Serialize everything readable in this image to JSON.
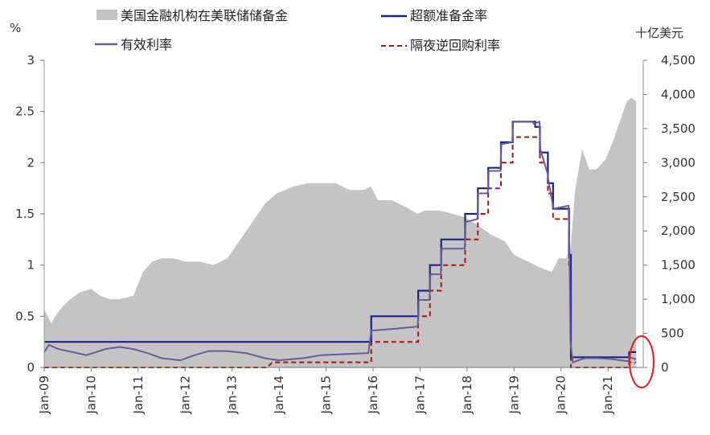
{
  "chart_data": {
    "type": "area+line",
    "left_axis": {
      "unit": "%",
      "min": 0,
      "max": 3,
      "ticks": [
        0,
        0.5,
        1,
        1.5,
        2,
        2.5,
        3
      ],
      "tick_labels": [
        "0",
        "0.5",
        "1",
        "1.5",
        "2",
        "2.5",
        "3"
      ]
    },
    "right_axis": {
      "unit": "十亿美元",
      "min": 0,
      "max": 4500,
      "ticks": [
        0,
        500,
        1000,
        1500,
        2000,
        2500,
        3000,
        3500,
        4000,
        4500
      ],
      "tick_labels": [
        "0",
        "500",
        "1,000",
        "1,500",
        "2,000",
        "2,500",
        "3,000",
        "3,500",
        "4,000",
        "4,500"
      ]
    },
    "x_axis": {
      "min": 2009.0,
      "max": 2021.75,
      "tick_labels": [
        "Jan-09",
        "Jan-10",
        "Jan-11",
        "Jan-12",
        "Jan-13",
        "Jan-14",
        "Jan-15",
        "Jan-16",
        "Jan-17",
        "Jan-18",
        "Jan-19",
        "Jan-20",
        "Jan-21"
      ],
      "tick_values": [
        2009,
        2010,
        2011,
        2012,
        2013,
        2014,
        2015,
        2016,
        2017,
        2018,
        2019,
        2020,
        2021
      ]
    },
    "legend": [
      {
        "key": "reserves",
        "label": "美国金融机构在美联储储备金",
        "color": "#c4c4c4",
        "style": "area"
      },
      {
        "key": "effr",
        "label": "有效利率",
        "color": "#6a5a9a",
        "style": "line"
      },
      {
        "key": "ioer",
        "label": "超额准备金率",
        "color": "#1a237e",
        "style": "line"
      },
      {
        "key": "onrrp",
        "label": "隔夜逆回购利率",
        "color": "#a01818",
        "style": "dashed"
      }
    ],
    "series": {
      "reserves": [
        [
          2009.0,
          850
        ],
        [
          2009.15,
          650
        ],
        [
          2009.3,
          820
        ],
        [
          2009.5,
          970
        ],
        [
          2009.75,
          1100
        ],
        [
          2010.0,
          1150
        ],
        [
          2010.2,
          1050
        ],
        [
          2010.4,
          1000
        ],
        [
          2010.6,
          1000
        ],
        [
          2010.9,
          1050
        ],
        [
          2011.1,
          1400
        ],
        [
          2011.3,
          1550
        ],
        [
          2011.5,
          1600
        ],
        [
          2011.75,
          1600
        ],
        [
          2012.0,
          1550
        ],
        [
          2012.3,
          1550
        ],
        [
          2012.6,
          1500
        ],
        [
          2012.9,
          1600
        ],
        [
          2013.1,
          1800
        ],
        [
          2013.4,
          2100
        ],
        [
          2013.7,
          2400
        ],
        [
          2013.95,
          2550
        ],
        [
          2014.3,
          2650
        ],
        [
          2014.6,
          2700
        ],
        [
          2014.9,
          2700
        ],
        [
          2015.2,
          2700
        ],
        [
          2015.5,
          2600
        ],
        [
          2015.8,
          2600
        ],
        [
          2015.95,
          2650
        ],
        [
          2016.1,
          2450
        ],
        [
          2016.4,
          2450
        ],
        [
          2016.7,
          2350
        ],
        [
          2016.95,
          2250
        ],
        [
          2017.1,
          2300
        ],
        [
          2017.4,
          2300
        ],
        [
          2017.7,
          2250
        ],
        [
          2017.95,
          2200
        ],
        [
          2018.2,
          2100
        ],
        [
          2018.5,
          1950
        ],
        [
          2018.8,
          1850
        ],
        [
          2019.0,
          1650
        ],
        [
          2019.3,
          1550
        ],
        [
          2019.6,
          1450
        ],
        [
          2019.8,
          1400
        ],
        [
          2019.95,
          1600
        ],
        [
          2020.1,
          1600
        ],
        [
          2020.2,
          1700
        ],
        [
          2020.3,
          2600
        ],
        [
          2020.45,
          3200
        ],
        [
          2020.6,
          2900
        ],
        [
          2020.75,
          2900
        ],
        [
          2020.95,
          3050
        ],
        [
          2021.1,
          3300
        ],
        [
          2021.25,
          3600
        ],
        [
          2021.4,
          3900
        ],
        [
          2021.5,
          3950
        ],
        [
          2021.6,
          3900
        ]
      ],
      "ioer": [
        [
          2009.0,
          0.25
        ],
        [
          2015.96,
          0.25
        ],
        [
          2015.96,
          0.5
        ],
        [
          2016.96,
          0.5
        ],
        [
          2016.96,
          0.75
        ],
        [
          2017.21,
          0.75
        ],
        [
          2017.21,
          1.0
        ],
        [
          2017.45,
          1.0
        ],
        [
          2017.45,
          1.25
        ],
        [
          2017.96,
          1.25
        ],
        [
          2017.96,
          1.5
        ],
        [
          2018.23,
          1.5
        ],
        [
          2018.23,
          1.75
        ],
        [
          2018.45,
          1.75
        ],
        [
          2018.45,
          1.95
        ],
        [
          2018.72,
          1.95
        ],
        [
          2018.72,
          2.2
        ],
        [
          2018.97,
          2.2
        ],
        [
          2018.97,
          2.4
        ],
        [
          2019.45,
          2.4
        ],
        [
          2019.45,
          2.35
        ],
        [
          2019.55,
          2.35
        ],
        [
          2019.55,
          2.1
        ],
        [
          2019.72,
          2.1
        ],
        [
          2019.72,
          1.8
        ],
        [
          2019.83,
          1.8
        ],
        [
          2019.83,
          1.55
        ],
        [
          2020.17,
          1.55
        ],
        [
          2020.17,
          1.1
        ],
        [
          2020.21,
          1.1
        ],
        [
          2020.21,
          0.1
        ],
        [
          2021.45,
          0.1
        ],
        [
          2021.45,
          0.15
        ],
        [
          2021.6,
          0.15
        ]
      ],
      "onrrp": [
        [
          2009.0,
          0.0
        ],
        [
          2013.75,
          0.0
        ],
        [
          2013.85,
          0.05
        ],
        [
          2015.96,
          0.05
        ],
        [
          2015.96,
          0.25
        ],
        [
          2016.96,
          0.25
        ],
        [
          2016.96,
          0.5
        ],
        [
          2017.21,
          0.5
        ],
        [
          2017.21,
          0.75
        ],
        [
          2017.45,
          0.75
        ],
        [
          2017.45,
          1.0
        ],
        [
          2017.96,
          1.0
        ],
        [
          2017.96,
          1.25
        ],
        [
          2018.23,
          1.25
        ],
        [
          2018.23,
          1.5
        ],
        [
          2018.45,
          1.5
        ],
        [
          2018.45,
          1.75
        ],
        [
          2018.72,
          1.75
        ],
        [
          2018.72,
          2.0
        ],
        [
          2018.97,
          2.0
        ],
        [
          2018.97,
          2.25
        ],
        [
          2019.55,
          2.25
        ],
        [
          2019.55,
          2.0
        ],
        [
          2019.72,
          2.0
        ],
        [
          2019.72,
          1.7
        ],
        [
          2019.83,
          1.7
        ],
        [
          2019.83,
          1.45
        ],
        [
          2020.17,
          1.45
        ],
        [
          2020.17,
          1.0
        ],
        [
          2020.21,
          1.0
        ],
        [
          2020.21,
          0.0
        ],
        [
          2021.45,
          0.0
        ],
        [
          2021.45,
          0.05
        ],
        [
          2021.6,
          0.05
        ]
      ],
      "effr": [
        [
          2009.0,
          0.15
        ],
        [
          2009.1,
          0.22
        ],
        [
          2009.3,
          0.18
        ],
        [
          2009.6,
          0.15
        ],
        [
          2009.9,
          0.12
        ],
        [
          2010.3,
          0.18
        ],
        [
          2010.6,
          0.2
        ],
        [
          2010.9,
          0.18
        ],
        [
          2011.2,
          0.14
        ],
        [
          2011.5,
          0.09
        ],
        [
          2011.9,
          0.07
        ],
        [
          2012.2,
          0.12
        ],
        [
          2012.5,
          0.16
        ],
        [
          2012.9,
          0.16
        ],
        [
          2013.3,
          0.14
        ],
        [
          2013.7,
          0.09
        ],
        [
          2014.0,
          0.07
        ],
        [
          2014.5,
          0.09
        ],
        [
          2014.9,
          0.12
        ],
        [
          2015.4,
          0.13
        ],
        [
          2015.9,
          0.14
        ],
        [
          2015.96,
          0.36
        ],
        [
          2016.5,
          0.38
        ],
        [
          2016.95,
          0.4
        ],
        [
          2016.97,
          0.66
        ],
        [
          2017.2,
          0.66
        ],
        [
          2017.22,
          0.91
        ],
        [
          2017.44,
          0.91
        ],
        [
          2017.46,
          1.16
        ],
        [
          2017.95,
          1.16
        ],
        [
          2017.97,
          1.42
        ],
        [
          2018.22,
          1.45
        ],
        [
          2018.24,
          1.7
        ],
        [
          2018.44,
          1.7
        ],
        [
          2018.46,
          1.92
        ],
        [
          2018.71,
          1.92
        ],
        [
          2018.73,
          2.18
        ],
        [
          2018.96,
          2.2
        ],
        [
          2018.98,
          2.4
        ],
        [
          2019.4,
          2.4
        ],
        [
          2019.42,
          2.38
        ],
        [
          2019.54,
          2.4
        ],
        [
          2019.56,
          2.13
        ],
        [
          2019.71,
          1.9
        ],
        [
          2019.73,
          1.83
        ],
        [
          2019.82,
          1.6
        ],
        [
          2019.84,
          1.55
        ],
        [
          2020.16,
          1.58
        ],
        [
          2020.18,
          1.1
        ],
        [
          2020.2,
          0.25
        ],
        [
          2020.25,
          0.05
        ],
        [
          2020.5,
          0.09
        ],
        [
          2020.8,
          0.09
        ],
        [
          2021.1,
          0.08
        ],
        [
          2021.44,
          0.06
        ],
        [
          2021.46,
          0.1
        ],
        [
          2021.6,
          0.08
        ]
      ]
    }
  }
}
